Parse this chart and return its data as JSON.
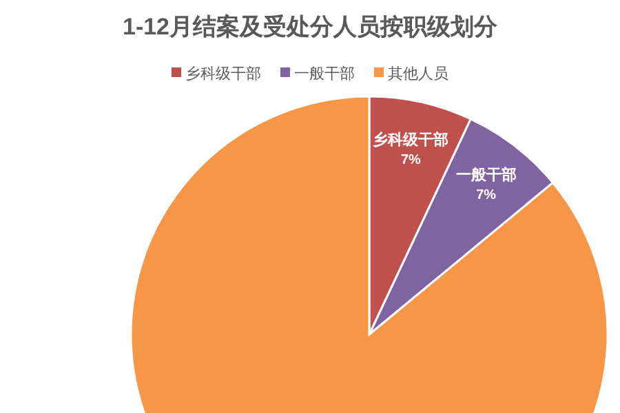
{
  "chart_data": {
    "type": "pie",
    "title": "1-12月结案及受处分人员按职级划分",
    "categories": [
      "乡科级干部",
      "一般干部",
      "其他人员"
    ],
    "values": [
      7,
      7,
      86
    ],
    "colors": [
      "#c0504d",
      "#8064a2",
      "#f79646"
    ],
    "value_labels": [
      "7%",
      "7%",
      null
    ],
    "legend": "top"
  }
}
